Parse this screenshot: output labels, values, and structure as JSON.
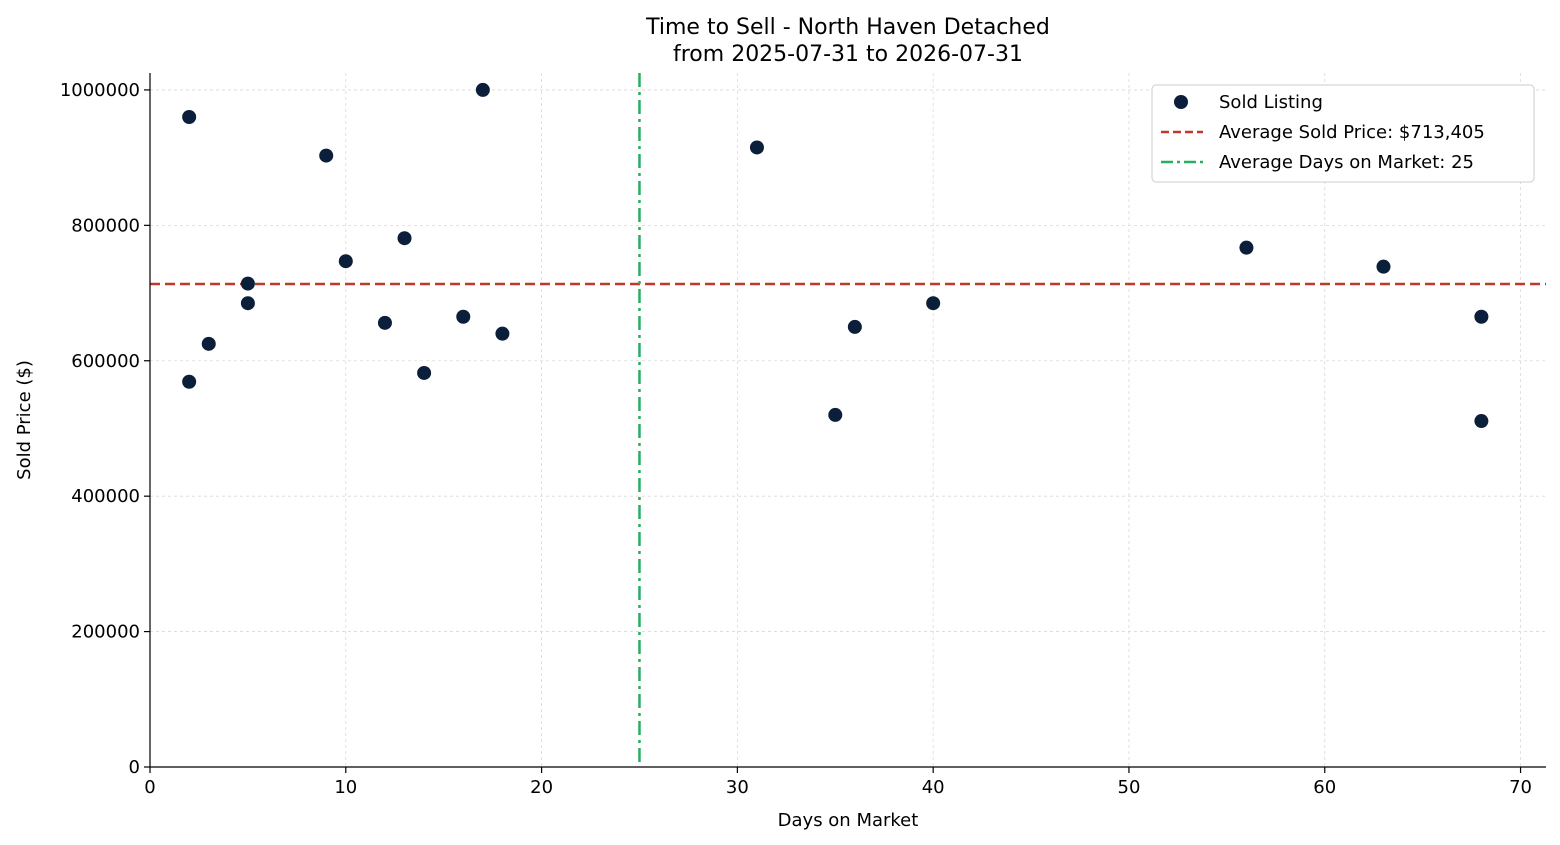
{
  "chart_data": {
    "type": "scatter",
    "title": "Time to Sell - North Haven Detached",
    "subtitle": "from 2025-07-31 to 2026-07-31",
    "xlabel": "Days on Market",
    "ylabel": "Sold Price ($)",
    "xlim": [
      0,
      71.3
    ],
    "ylim": [
      0,
      1025000
    ],
    "x_ticks": [
      0,
      10,
      20,
      30,
      40,
      50,
      60,
      70
    ],
    "y_ticks": [
      0,
      200000,
      400000,
      600000,
      800000,
      1000000
    ],
    "grid": true,
    "legend_position": "top-right",
    "series": [
      {
        "name": "Sold Listing",
        "color": "#0b1e3a",
        "points": [
          {
            "x": 2,
            "y": 960000
          },
          {
            "x": 2,
            "y": 569000
          },
          {
            "x": 3,
            "y": 625000
          },
          {
            "x": 5,
            "y": 714000
          },
          {
            "x": 5,
            "y": 685000
          },
          {
            "x": 9,
            "y": 903000
          },
          {
            "x": 10,
            "y": 747000
          },
          {
            "x": 12,
            "y": 656000
          },
          {
            "x": 13,
            "y": 781000
          },
          {
            "x": 14,
            "y": 582000
          },
          {
            "x": 16,
            "y": 665000
          },
          {
            "x": 17,
            "y": 1000000
          },
          {
            "x": 18,
            "y": 640000
          },
          {
            "x": 31,
            "y": 915000
          },
          {
            "x": 35,
            "y": 520000
          },
          {
            "x": 36,
            "y": 650000
          },
          {
            "x": 40,
            "y": 685000
          },
          {
            "x": 56,
            "y": 767000
          },
          {
            "x": 63,
            "y": 739000
          },
          {
            "x": 68,
            "y": 665000
          },
          {
            "x": 68,
            "y": 511000
          }
        ]
      }
    ],
    "reference_lines": [
      {
        "orientation": "horizontal",
        "value": 713405,
        "label": "Average Sold Price: $713,405",
        "color": "#c0392b",
        "style": "dashed"
      },
      {
        "orientation": "vertical",
        "value": 25,
        "label": "Average Days on Market: 25",
        "color": "#27ae60",
        "style": "dashdot"
      }
    ]
  }
}
